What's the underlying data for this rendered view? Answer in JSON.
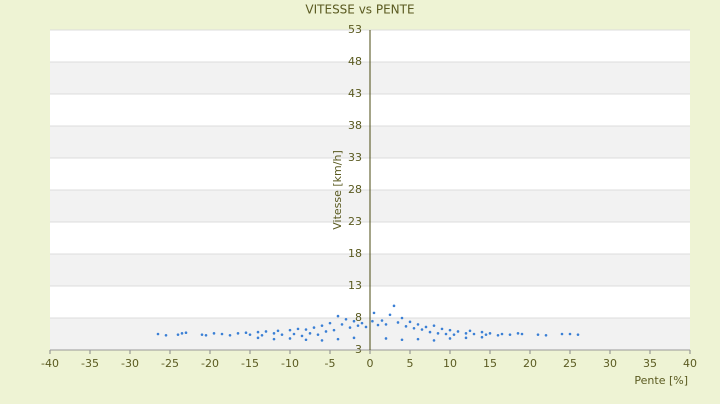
{
  "chart_data": {
    "type": "scatter",
    "title": "VITESSE vs PENTE",
    "x_label": "Pente [%]",
    "y_label": "Vitesse [km/h]",
    "xlim": [
      -40,
      40
    ],
    "xticks": [
      -40,
      -35,
      -30,
      -25,
      -20,
      -15,
      -10,
      -5,
      0,
      5,
      10,
      15,
      20,
      25,
      30,
      35,
      40
    ],
    "ylim": [
      3,
      53
    ],
    "yticks": [
      3,
      8,
      13,
      18,
      23,
      28,
      33,
      38,
      43,
      48,
      53
    ],
    "grid": true,
    "series": [
      {
        "color": "#3a7fd5",
        "x": [
          -26.5,
          -25.5,
          -24,
          -23.5,
          -23,
          -21,
          -20.5,
          -19.5,
          -18.5,
          -17.5,
          -16.5,
          -15.5,
          -15,
          -14,
          -13.5,
          -13,
          -12,
          -11.5,
          -11,
          -10,
          -9.5,
          -9,
          -8.5,
          -8,
          -7.5,
          -7,
          -6.5,
          -6,
          -5.5,
          -5,
          -4.5,
          -4,
          -3.5,
          -3,
          -2.5,
          -2,
          -1.5,
          -1,
          -0.5,
          0.3,
          0.5,
          1,
          1.5,
          2,
          2.5,
          3,
          3.5,
          4,
          4.5,
          5,
          5.5,
          6,
          6.5,
          7,
          7.5,
          8,
          8.5,
          9,
          9.5,
          10,
          10.5,
          11,
          12,
          12.5,
          13,
          14,
          14.5,
          15,
          16,
          16.5,
          17.5,
          18.5,
          19,
          21,
          22,
          24,
          25,
          26,
          -14,
          -12,
          -10,
          -8,
          -6,
          -4,
          -2,
          2,
          4,
          6,
          8,
          10,
          12,
          14
        ],
        "values": [
          5.5,
          5.3,
          5.4,
          5.6,
          5.7,
          5.4,
          5.3,
          5.6,
          5.5,
          5.3,
          5.6,
          5.7,
          5.4,
          5.8,
          5.3,
          5.9,
          5.6,
          6.0,
          5.4,
          6.1,
          5.5,
          6.3,
          5.2,
          6.2,
          5.6,
          6.5,
          5.4,
          6.8,
          5.9,
          7.2,
          6.1,
          8.3,
          7.0,
          7.8,
          6.5,
          7.5,
          6.8,
          7.2,
          6.6,
          7.5,
          8.8,
          6.9,
          7.6,
          7.0,
          8.5,
          9.9,
          7.3,
          8.0,
          6.7,
          7.4,
          6.4,
          7.0,
          6.2,
          6.6,
          5.8,
          6.8,
          5.6,
          6.3,
          5.5,
          6.1,
          5.4,
          5.9,
          5.6,
          6.0,
          5.5,
          5.8,
          5.4,
          5.6,
          5.3,
          5.5,
          5.4,
          5.6,
          5.5,
          5.4,
          5.3,
          5.5,
          5.5,
          5.4,
          4.9,
          4.7,
          4.8,
          4.6,
          4.5,
          4.7,
          4.9,
          4.8,
          4.6,
          4.7,
          4.5,
          4.8,
          4.9,
          5.0
        ]
      }
    ]
  }
}
